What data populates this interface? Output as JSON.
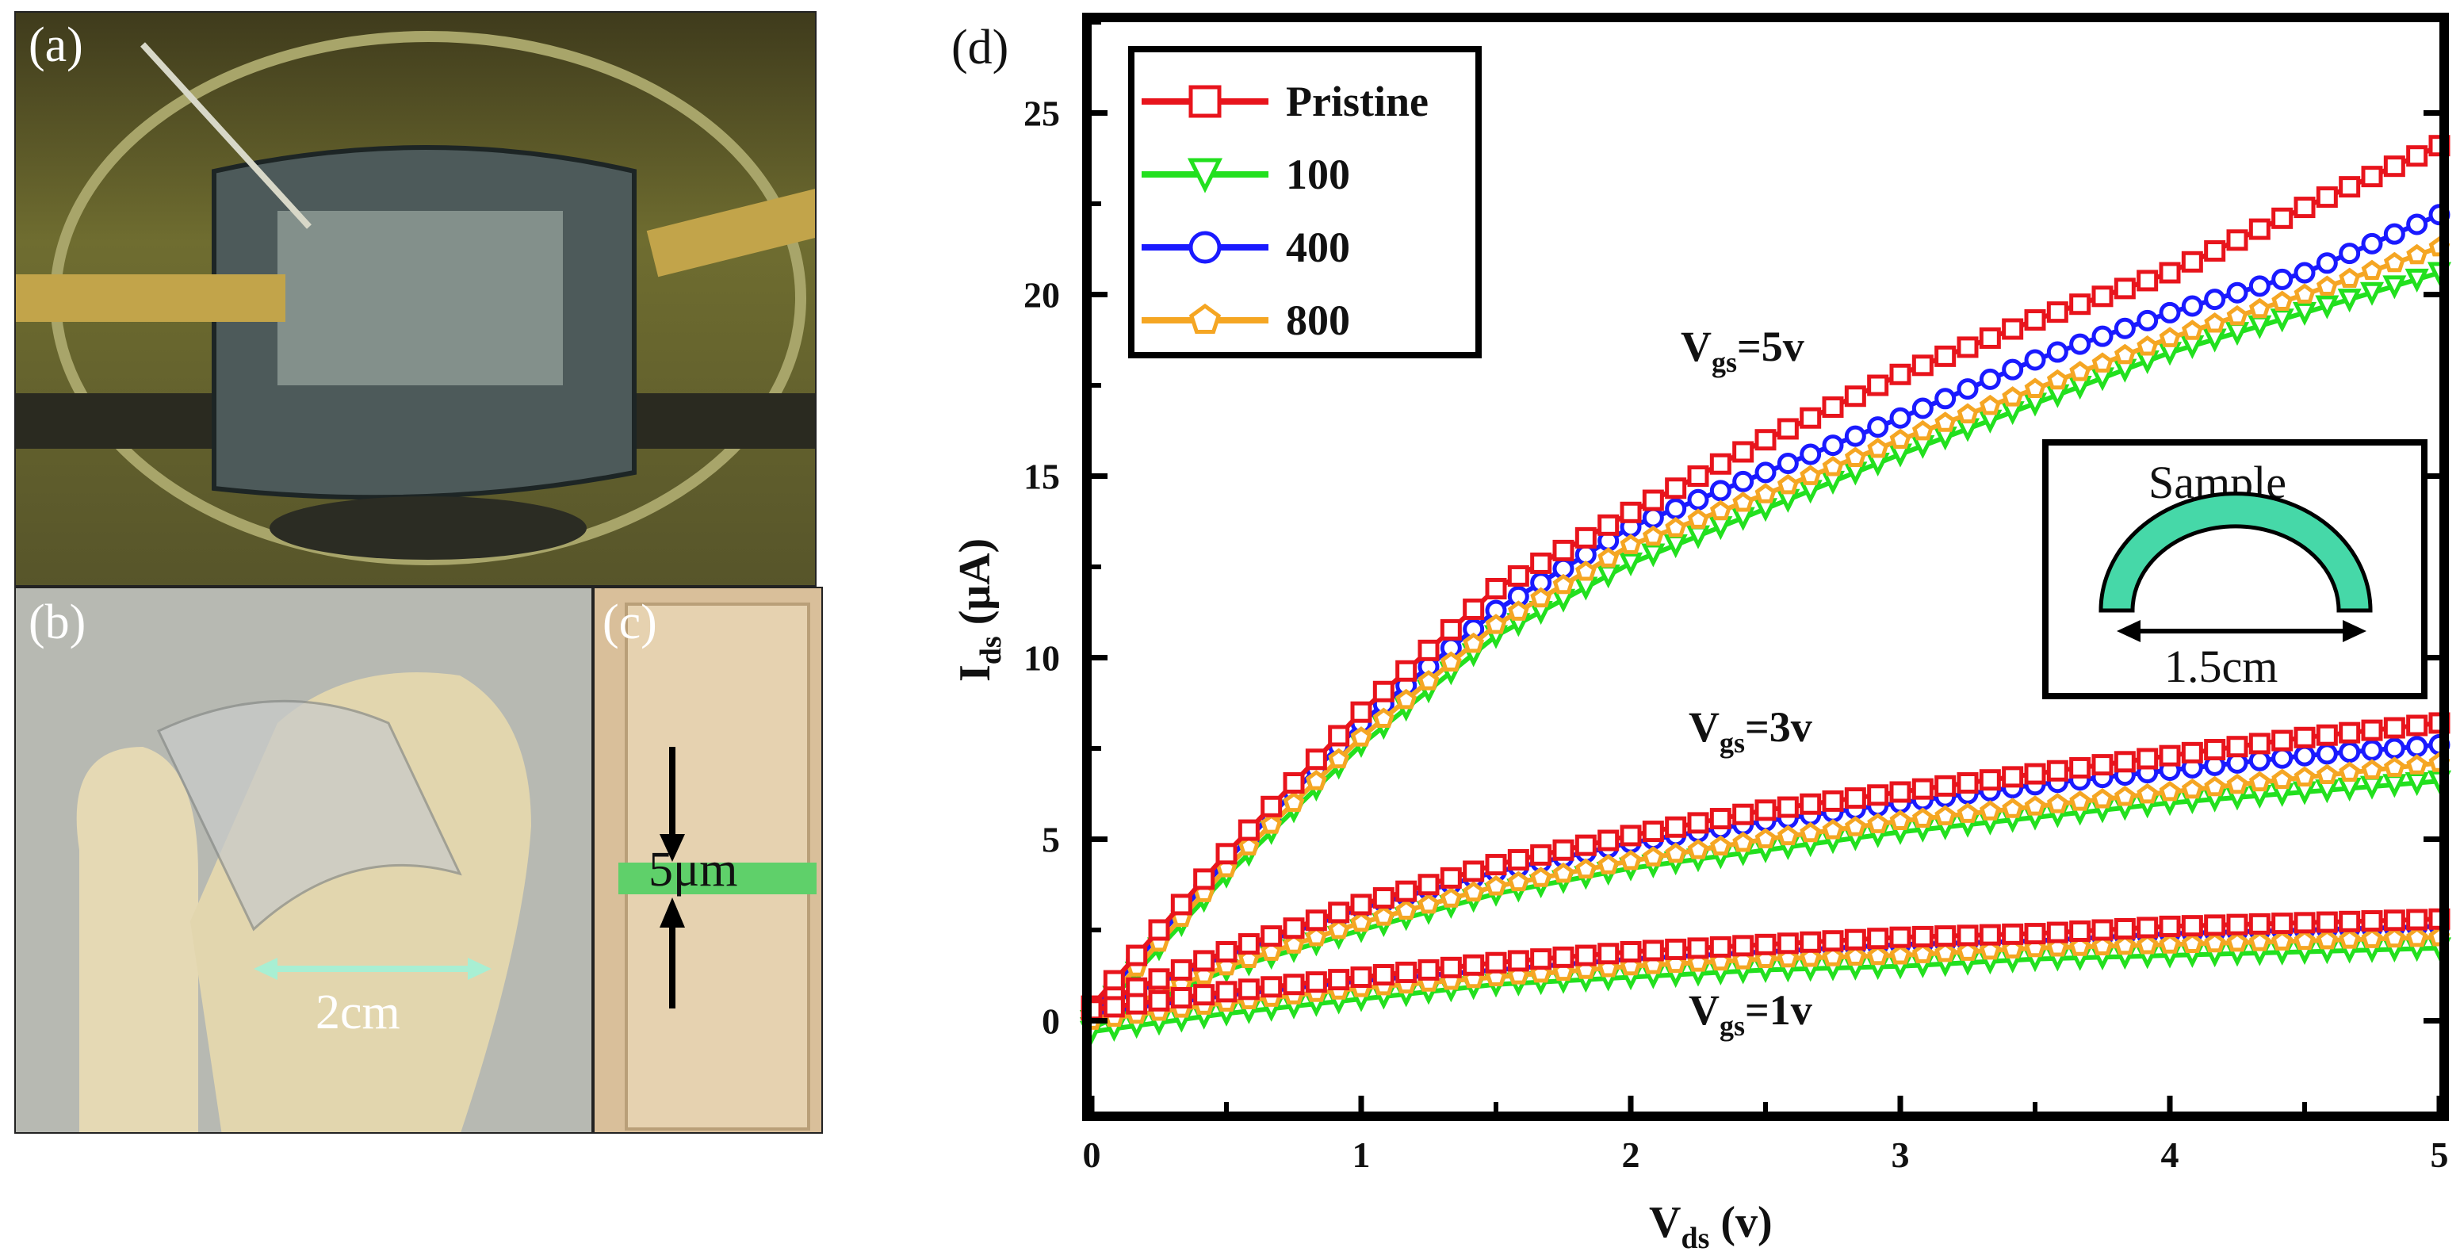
{
  "panels": {
    "a": {
      "label": "(a)"
    },
    "b": {
      "label": "(b)",
      "scale_text": "2cm"
    },
    "c": {
      "label": "(c)",
      "scale_text": "5μm"
    },
    "d": {
      "label": "(d)"
    }
  },
  "colors": {
    "pristine": "#e8141c",
    "c100": "#22e01e",
    "c400": "#1a1aff",
    "c800": "#f5a623",
    "inset_arc": "#46d8a8",
    "photo_a_bg": "#6b6a2c",
    "photo_b_bg": "#b7b9b2",
    "photo_c_bg": "#d9bf9a",
    "gap_green": "#5fd06a"
  },
  "inset": {
    "title": "Sample",
    "dimension": "1.5cm"
  },
  "chart_data": {
    "type": "line",
    "x_axis": {
      "title_main": "V",
      "title_sub": "ds",
      "title_unit": " (v)",
      "range": [
        0,
        5
      ],
      "ticks": [
        0,
        1,
        2,
        3,
        4,
        5
      ],
      "tick_labels": [
        "0",
        "1",
        "2",
        "3",
        "4",
        "5"
      ]
    },
    "y_axis": {
      "title_main": "I",
      "title_sub": "ds",
      "title_unit": " (μA)",
      "range": [
        -2.5,
        27.5
      ],
      "ticks": [
        0,
        5,
        10,
        15,
        20,
        25
      ],
      "tick_labels": [
        "0",
        "5",
        "10",
        "15",
        "20",
        "25"
      ]
    },
    "x": [
      0,
      0.5,
      1,
      1.5,
      2,
      2.5,
      3,
      3.5,
      4,
      4.5,
      5
    ],
    "legend": [
      {
        "key": "pristine",
        "name": "Pristine",
        "marker": "square"
      },
      {
        "key": "c100",
        "name": "100",
        "marker": "triangle-down"
      },
      {
        "key": "c400",
        "name": "400",
        "marker": "circle"
      },
      {
        "key": "c800",
        "name": "800",
        "marker": "pentagon"
      }
    ],
    "groups": [
      {
        "label_main": "V",
        "label_sub": "gs",
        "label_value": "=5v",
        "series": [
          {
            "key": "pristine",
            "values": [
              0.4,
              4.6,
              8.5,
              11.9,
              14.0,
              16.0,
              17.8,
              19.3,
              20.6,
              22.4,
              24.1
            ]
          },
          {
            "key": "c100",
            "values": [
              0.0,
              4.0,
              7.6,
              10.6,
              12.6,
              14.1,
              15.6,
              17.0,
              18.4,
              19.5,
              20.6
            ]
          },
          {
            "key": "c400",
            "values": [
              0.3,
              4.4,
              8.2,
              11.3,
              13.6,
              15.1,
              16.6,
              18.2,
              19.5,
              20.6,
              22.2
            ]
          },
          {
            "key": "c800",
            "values": [
              0.1,
              4.2,
              7.8,
              10.9,
              13.1,
              14.5,
              16.0,
              17.4,
              18.8,
              20.0,
              21.3
            ]
          }
        ]
      },
      {
        "label_main": "V",
        "label_sub": "gs",
        "label_value": "=3v",
        "series": [
          {
            "key": "pristine",
            "values": [
              0.4,
              1.9,
              3.2,
              4.3,
              5.1,
              5.8,
              6.3,
              6.8,
              7.3,
              7.8,
              8.2
            ]
          },
          {
            "key": "c100",
            "values": [
              -0.2,
              1.4,
              2.5,
              3.5,
              4.2,
              4.7,
              5.2,
              5.6,
              6.0,
              6.3,
              6.6
            ]
          },
          {
            "key": "c400",
            "values": [
              0.3,
              1.8,
              3.1,
              4.1,
              4.9,
              5.5,
              6.0,
              6.5,
              6.9,
              7.3,
              7.6
            ]
          },
          {
            "key": "c800",
            "values": [
              0.0,
              1.5,
              2.7,
              3.7,
              4.4,
              5.0,
              5.5,
              5.9,
              6.3,
              6.7,
              7.1
            ]
          }
        ]
      },
      {
        "label_main": "V",
        "label_sub": "gs",
        "label_value": "=1v",
        "series": [
          {
            "key": "pristine",
            "values": [
              0.3,
              0.8,
              1.2,
              1.6,
              1.9,
              2.1,
              2.3,
              2.4,
              2.6,
              2.7,
              2.8
            ]
          },
          {
            "key": "c100",
            "values": [
              -0.3,
              0.2,
              0.6,
              1.0,
              1.2,
              1.4,
              1.5,
              1.7,
              1.8,
              1.9,
              2.0
            ]
          },
          {
            "key": "c400",
            "values": [
              0.2,
              0.7,
              1.1,
              1.4,
              1.7,
              1.9,
              2.1,
              2.2,
              2.4,
              2.5,
              2.6
            ]
          },
          {
            "key": "c800",
            "values": [
              0.0,
              0.5,
              0.9,
              1.2,
              1.5,
              1.7,
              1.8,
              2.0,
              2.1,
              2.2,
              2.3
            ]
          }
        ]
      }
    ]
  }
}
